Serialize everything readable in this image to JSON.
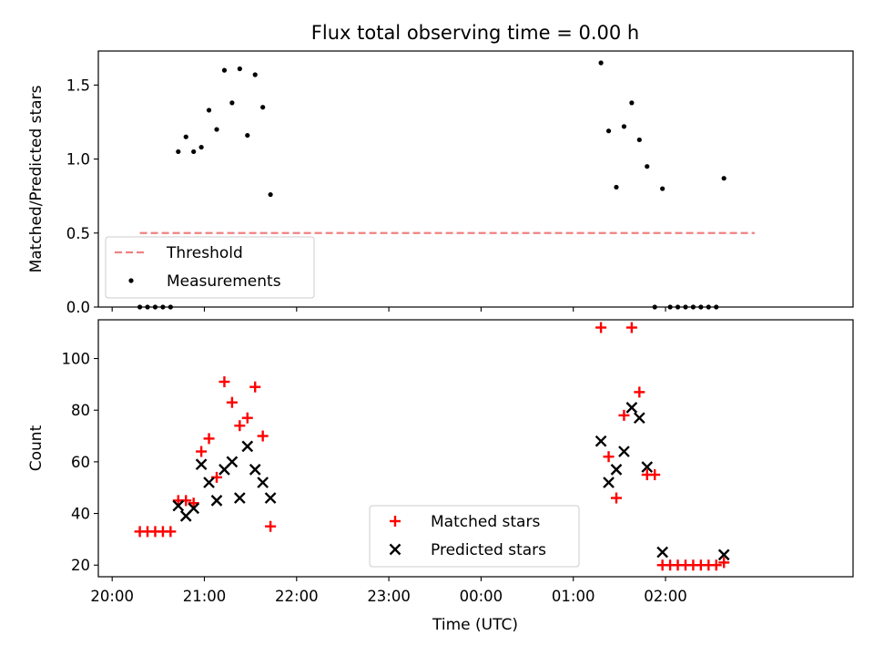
{
  "chart_data": {
    "title": "Flux total observing time = 0.00 h",
    "x_axis": {
      "label": "Time (UTC)",
      "ticks": [
        "20:00",
        "21:00",
        "22:00",
        "23:00",
        "00:00",
        "01:00",
        "02:00"
      ],
      "tick_minutes": [
        1200,
        1260,
        1320,
        1380,
        1440,
        1500,
        1560
      ],
      "range_minutes": [
        1191,
        1682
      ],
      "note_values": "x values are minutes since 00:00 of the first night (values above 1440 are after midnight)"
    },
    "panels": [
      {
        "type": "scatter",
        "ylabel": "Matched/Predicted stars",
        "ylim": [
          0,
          1.73
        ],
        "yticks": [
          0.0,
          0.5,
          1.0,
          1.5
        ],
        "ytick_labels": [
          "0.0",
          "0.5",
          "1.0",
          "1.5"
        ],
        "legend_position": "lower-left",
        "series": [
          {
            "name": "Threshold",
            "kind": "dashed-line",
            "color": "#f08080",
            "points": [
              [
                1218,
                0.5
              ],
              [
                1618,
                0.5
              ]
            ]
          },
          {
            "name": "Measurements",
            "kind": "dot",
            "color": "#000000",
            "points": [
              [
                1218,
                0.0
              ],
              [
                1223,
                0.0
              ],
              [
                1228,
                0.0
              ],
              [
                1233,
                0.0
              ],
              [
                1238,
                0.0
              ],
              [
                1243,
                1.05
              ],
              [
                1248,
                1.15
              ],
              [
                1253,
                1.05
              ],
              [
                1258,
                1.08
              ],
              [
                1263,
                1.33
              ],
              [
                1268,
                1.2
              ],
              [
                1273,
                1.6
              ],
              [
                1278,
                1.38
              ],
              [
                1283,
                1.61
              ],
              [
                1288,
                1.16
              ],
              [
                1293,
                1.57
              ],
              [
                1298,
                1.35
              ],
              [
                1303,
                0.76
              ],
              [
                1518,
                1.65
              ],
              [
                1523,
                1.19
              ],
              [
                1528,
                0.81
              ],
              [
                1533,
                1.22
              ],
              [
                1538,
                1.38
              ],
              [
                1543,
                1.13
              ],
              [
                1548,
                0.95
              ],
              [
                1553,
                0.0
              ],
              [
                1558,
                0.8
              ],
              [
                1563,
                0.0
              ],
              [
                1568,
                0.0
              ],
              [
                1573,
                0.0
              ],
              [
                1578,
                0.0
              ],
              [
                1583,
                0.0
              ],
              [
                1588,
                0.0
              ],
              [
                1593,
                0.0
              ],
              [
                1598,
                0.87
              ]
            ]
          }
        ]
      },
      {
        "type": "scatter",
        "ylabel": "Count",
        "ylim": [
          15.5,
          115
        ],
        "yticks": [
          20,
          40,
          60,
          80,
          100
        ],
        "ytick_labels": [
          "20",
          "40",
          "60",
          "80",
          "100"
        ],
        "legend_position": "lower-center",
        "series": [
          {
            "name": "Matched stars",
            "kind": "plus",
            "color": "#ff0000",
            "points": [
              [
                1218,
                33
              ],
              [
                1223,
                33
              ],
              [
                1228,
                33
              ],
              [
                1233,
                33
              ],
              [
                1238,
                33
              ],
              [
                1243,
                45
              ],
              [
                1248,
                45
              ],
              [
                1253,
                44
              ],
              [
                1258,
                64
              ],
              [
                1263,
                69
              ],
              [
                1268,
                54
              ],
              [
                1273,
                91
              ],
              [
                1278,
                83
              ],
              [
                1283,
                74
              ],
              [
                1288,
                77
              ],
              [
                1293,
                89
              ],
              [
                1298,
                70
              ],
              [
                1303,
                35
              ],
              [
                1518,
                112
              ],
              [
                1523,
                62
              ],
              [
                1528,
                46
              ],
              [
                1533,
                78
              ],
              [
                1538,
                112
              ],
              [
                1543,
                87
              ],
              [
                1548,
                55
              ],
              [
                1553,
                55
              ],
              [
                1558,
                20
              ],
              [
                1563,
                20
              ],
              [
                1568,
                20
              ],
              [
                1573,
                20
              ],
              [
                1578,
                20
              ],
              [
                1583,
                20
              ],
              [
                1588,
                20
              ],
              [
                1593,
                20
              ],
              [
                1598,
                21
              ]
            ]
          },
          {
            "name": "Predicted stars",
            "kind": "x",
            "color": "#000000",
            "points": [
              [
                1243,
                43
              ],
              [
                1248,
                39
              ],
              [
                1253,
                42
              ],
              [
                1258,
                59
              ],
              [
                1263,
                52
              ],
              [
                1268,
                45
              ],
              [
                1273,
                57
              ],
              [
                1278,
                60
              ],
              [
                1283,
                46
              ],
              [
                1288,
                66
              ],
              [
                1293,
                57
              ],
              [
                1298,
                52
              ],
              [
                1303,
                46
              ],
              [
                1518,
                68
              ],
              [
                1523,
                52
              ],
              [
                1528,
                57
              ],
              [
                1533,
                64
              ],
              [
                1538,
                81
              ],
              [
                1543,
                77
              ],
              [
                1548,
                58
              ],
              [
                1558,
                25
              ],
              [
                1598,
                24
              ]
            ]
          }
        ]
      }
    ]
  }
}
